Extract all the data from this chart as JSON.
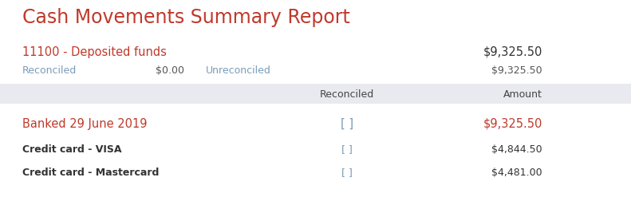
{
  "title": "Cash Movements Summary Report",
  "title_color": "#c0392b",
  "title_fontsize": 17,
  "bg_color": "#ffffff",
  "section_label": "11100 - Deposited funds",
  "section_label_color": "#c0392b",
  "section_label_fontsize": 10.5,
  "section_amount": "$9,325.50",
  "section_amount_color": "#333333",
  "reconciled_label": "Reconciled",
  "reconciled_label_color": "#7a9cb8",
  "reconciled_value": "$0.00",
  "reconciled_value_color": "#555555",
  "unreconciled_label": "Unreconciled",
  "unreconciled_label_color": "#7a9cb8",
  "unreconciled_value": "$9,325.50",
  "unreconciled_value_color": "#555555",
  "header_bg_color": "#e8eaf0",
  "header_reconciled": "Reconciled",
  "header_amount": "Amount",
  "header_fontsize": 9,
  "header_text_color": "#444444",
  "rows": [
    {
      "label": "Banked 29 June 2019",
      "label_color": "#c0392b",
      "label_bold": false,
      "label_fontsize": 10.5,
      "reconciled_bracket": "[ ]",
      "amount": "$9,325.50",
      "amount_color": "#c0392b",
      "amount_fontsize": 10.5
    },
    {
      "label": "Credit card - VISA",
      "label_color": "#333333",
      "label_bold": true,
      "label_fontsize": 9,
      "reconciled_bracket": "[ ]",
      "amount": "$4,844.50",
      "amount_color": "#333333",
      "amount_fontsize": 9
    },
    {
      "label": "Credit card - Mastercard",
      "label_color": "#333333",
      "label_bold": true,
      "label_fontsize": 9,
      "reconciled_bracket": "[ ]",
      "amount": "$4,481.00",
      "amount_color": "#333333",
      "amount_fontsize": 9
    }
  ],
  "bracket_color": "#7a9cb8",
  "figsize": [
    7.91,
    2.62
  ],
  "dpi": 100
}
